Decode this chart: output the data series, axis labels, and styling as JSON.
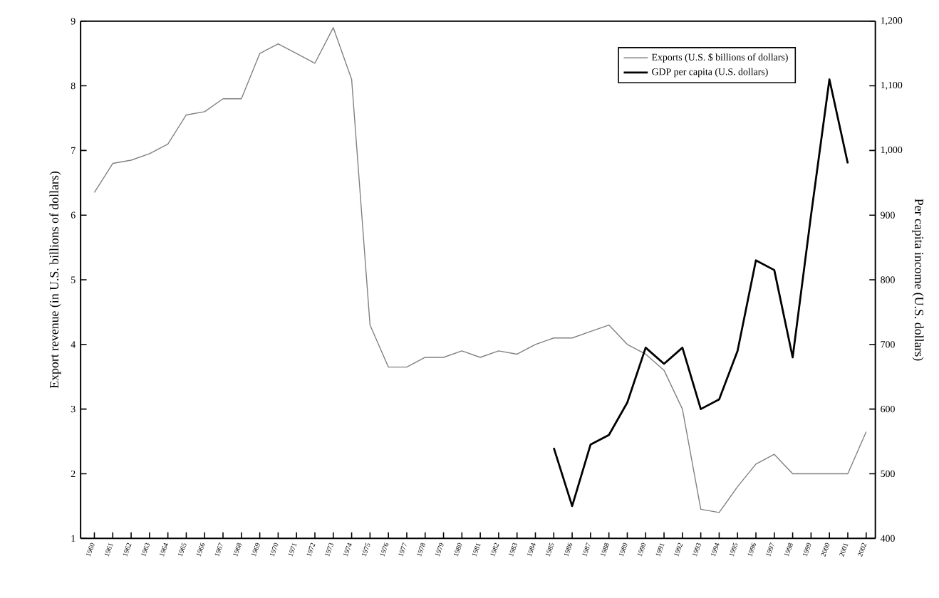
{
  "chart_data": {
    "type": "line",
    "ylabel": "Export revenue (in U.S. billions of dollars)",
    "y2label": "Per capita income (U.S. dollars)",
    "categories": [
      "1960",
      "1961",
      "1962",
      "1963",
      "1964",
      "1965",
      "1966",
      "1967",
      "1968",
      "1969",
      "1970",
      "1971",
      "1972",
      "1973",
      "1974",
      "1975",
      "1976",
      "1977",
      "1978",
      "1979",
      "1980",
      "1981",
      "1982",
      "1983",
      "1984",
      "1985",
      "1986",
      "1987",
      "1988",
      "1989",
      "1990",
      "1991",
      "1992",
      "1993",
      "1994",
      "1995",
      "1996",
      "1997",
      "1998",
      "1999",
      "2000",
      "2001",
      "2002"
    ],
    "series": [
      {
        "name": "Exports (U.S. $ billions of dollars)",
        "color": "#808080",
        "values": [
          6.35,
          6.8,
          6.85,
          6.95,
          7.1,
          7.55,
          7.6,
          7.8,
          7.8,
          8.5,
          8.65,
          8.5,
          8.35,
          8.9,
          8.1,
          4.3,
          3.65,
          3.65,
          3.8,
          3.8,
          3.9,
          3.8,
          3.9,
          3.85,
          4.0,
          4.1,
          4.1,
          4.2,
          4.3,
          4.0,
          3.85,
          3.6,
          3.0,
          1.45,
          1.4,
          1.8,
          2.15,
          2.3,
          2.0,
          2.0,
          2.0,
          2.0,
          2.65
        ]
      },
      {
        "name": "GDP per capita (U.S. dollars)",
        "color": "#000000",
        "axis": "y2",
        "values": [
          null,
          null,
          null,
          null,
          null,
          null,
          null,
          null,
          null,
          null,
          null,
          null,
          null,
          null,
          null,
          null,
          null,
          null,
          null,
          null,
          null,
          null,
          null,
          null,
          null,
          540,
          450,
          545,
          560,
          610,
          695,
          670,
          695,
          600,
          615,
          690,
          830,
          815,
          680,
          900,
          1110,
          980,
          null
        ]
      }
    ],
    "ylim": [
      1,
      9
    ],
    "yticks": [
      1,
      2,
      3,
      4,
      5,
      6,
      7,
      8,
      9
    ],
    "y2lim": [
      400,
      1200
    ],
    "y2ticks": [
      400,
      500,
      600,
      700,
      800,
      900,
      {
        "value": 1000,
        "label": "1,000"
      },
      {
        "value": 1100,
        "label": "1,100"
      },
      {
        "value": 1200,
        "label": "1,200"
      }
    ],
    "legend": "top right",
    "marker": "none",
    "line_style": "solid",
    "grid": false
  }
}
